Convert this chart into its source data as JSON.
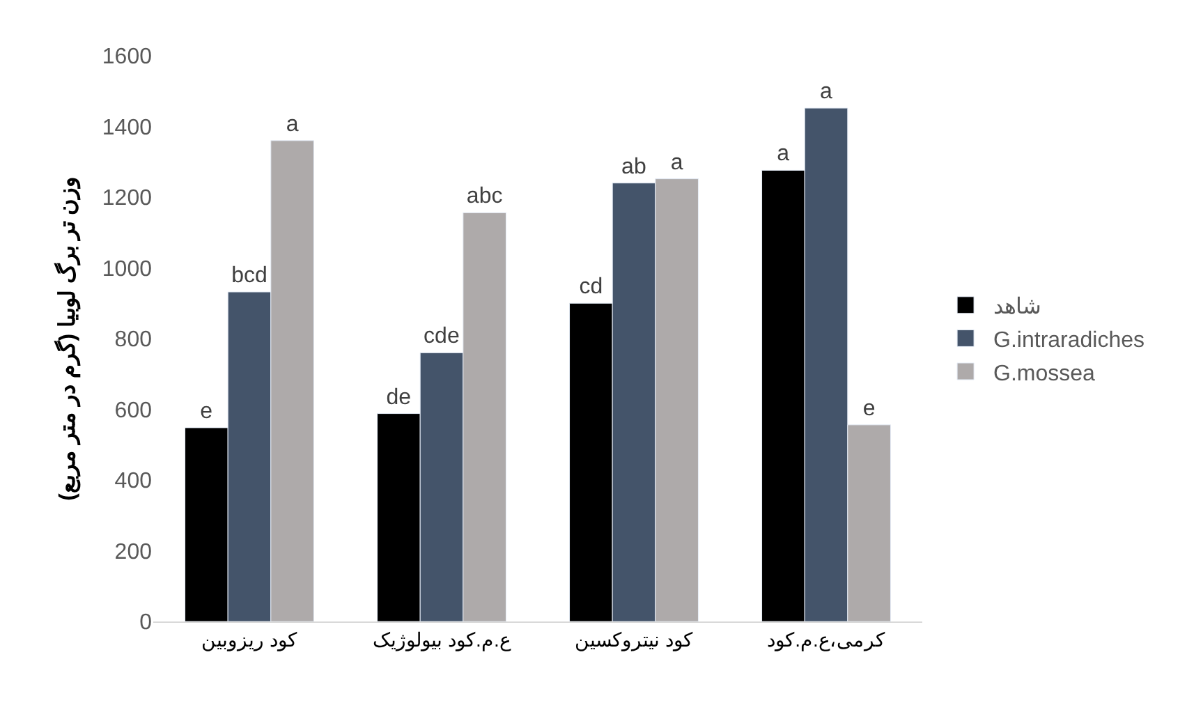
{
  "chart_data": {
    "type": "bar",
    "ylabel": "وزن تر برگ لوبیا (گرم در متر مربع)",
    "categories": [
      "کود ریزوبین",
      "ع.م.کود بیولوژیک",
      "کود نیتروکسین",
      "کرمی،ع.م.کود"
    ],
    "series": [
      {
        "name": "شاهد",
        "color": "#000000",
        "values": [
          548,
          588,
          900,
          1276
        ],
        "value_labels": [
          "e",
          "de",
          "cd",
          "a"
        ]
      },
      {
        "name": "G.intraradiches",
        "color": "#44546a",
        "values": [
          932,
          760,
          1240,
          1452
        ],
        "value_labels": [
          "bcd",
          "cde",
          "ab",
          "a"
        ]
      },
      {
        "name": "G.mossea",
        "color": "#aeaaaa",
        "values": [
          1360,
          1156,
          1252,
          556
        ],
        "value_labels": [
          "a",
          "abc",
          "a",
          "e"
        ]
      }
    ],
    "ylim": [
      0,
      1600
    ],
    "yticks": [
      0,
      200,
      400,
      600,
      800,
      1000,
      1200,
      1400,
      1600
    ],
    "legend": "right"
  }
}
